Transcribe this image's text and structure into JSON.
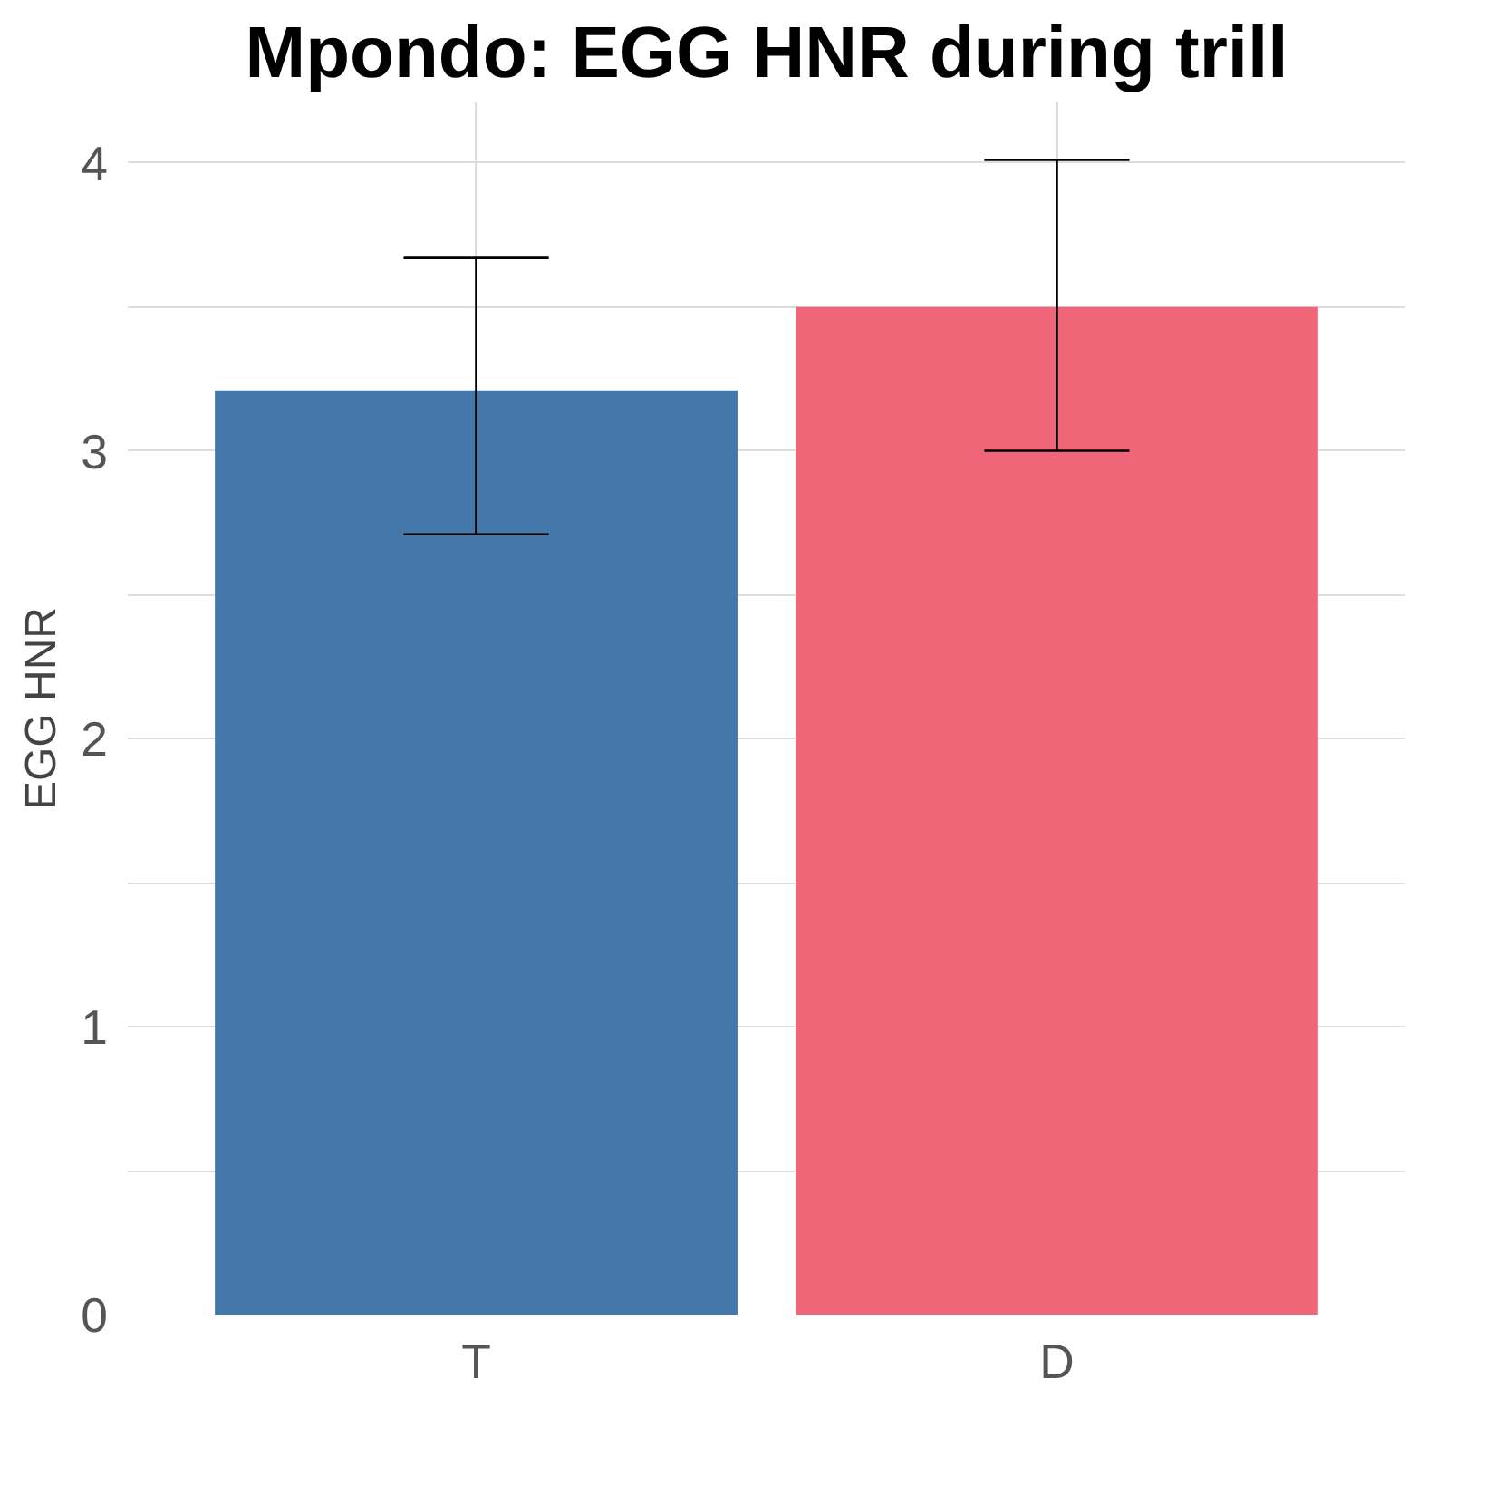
{
  "chart_data": {
    "type": "bar",
    "title": "Mpondo: EGG HNR during trill",
    "ylabel": "EGG HNR",
    "categories": [
      "T",
      "D"
    ],
    "values": [
      3.21,
      3.5
    ],
    "colors": [
      "#4578aa",
      "#ee6677"
    ],
    "errors": [
      [
        2.71,
        3.67
      ],
      [
        3.0,
        4.01
      ]
    ],
    "ylim": [
      0,
      4.21
    ],
    "yticks": [
      0,
      {
        "value": 0.5,
        "label": null
      },
      1,
      {
        "value": 1.5,
        "label": null
      },
      2,
      {
        "value": 2.5,
        "label": null
      },
      3,
      {
        "value": 3.5,
        "label": null
      },
      4
    ],
    "grid": true
  }
}
